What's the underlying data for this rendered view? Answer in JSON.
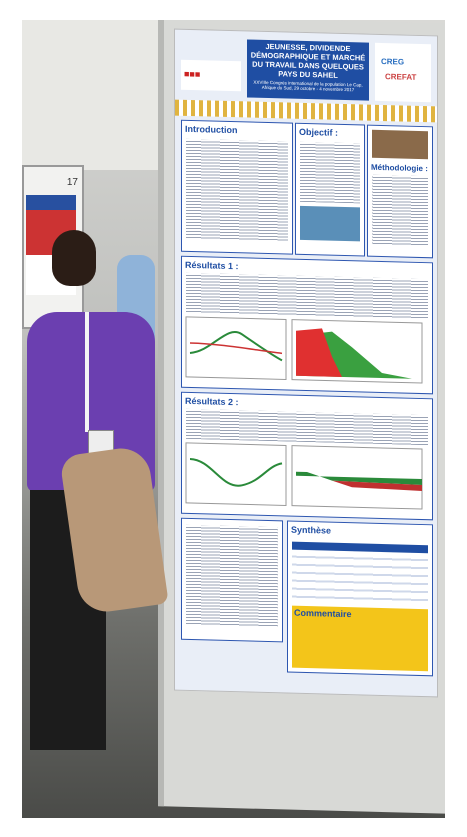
{
  "sign_number": "17",
  "poster": {
    "title": "JEUNESSE, DIVIDENDE DÉMOGRAPHIQUE ET MARCHÉ DU TRAVAIL DANS QUELQUES PAYS DU SAHEL",
    "subtitle": "XXVIIIe Congrès international de la population Le Cap, Afrique du Sud, 29 octobre - 4 novembre 2017",
    "sponsors": [
      "CREG",
      "CREFAT"
    ],
    "sections": {
      "introduction": "Introduction",
      "objective": "Objectif :",
      "methodology": "Méthodologie :",
      "results1": "Résultats 1 :",
      "results2": "Résultats 2 :",
      "synthesis": "Synthèse",
      "comment": "Commentaire"
    }
  }
}
